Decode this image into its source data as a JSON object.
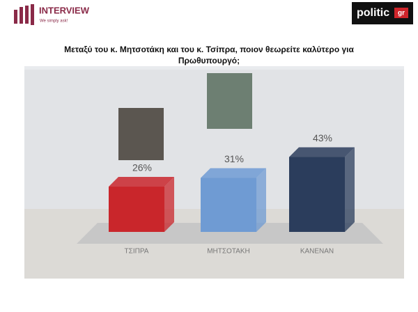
{
  "header": {
    "brand": "INTERVIEW",
    "tagline": "We simply ask!",
    "partner": "politic",
    "partner_suffix": "gr"
  },
  "chart_data": {
    "type": "bar3d",
    "title": "Μεταξύ του κ. Μητσοτάκη και του κ. Τσίπρα, ποιον θεωρείτε καλύτερο για",
    "subtitle": "Πρωθυπουργό;",
    "categories": [
      "ΤΣΙΠΡΑ",
      "ΜΗΤΣΟΤΑΚΗ",
      "ΚΑΝΕΝΑΝ"
    ],
    "values": [
      26,
      31,
      43
    ],
    "value_labels": [
      "26%",
      "31%",
      "43%"
    ],
    "colors": [
      "#c9262b",
      "#6f9bd3",
      "#2b3d5c"
    ]
  }
}
